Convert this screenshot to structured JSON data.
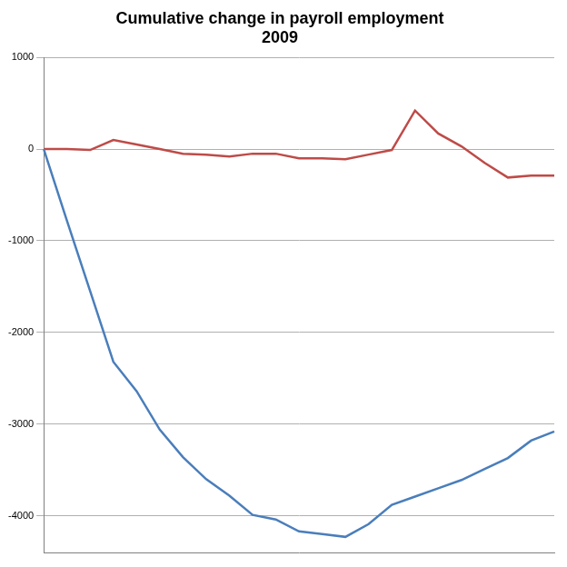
{
  "chart_data": {
    "type": "line",
    "title": [
      "Cumulative change in payroll employment",
      "2009"
    ],
    "categories": [
      null,
      null,
      null,
      null,
      null,
      null,
      null,
      null,
      null,
      null,
      null,
      null,
      null,
      null,
      null,
      null,
      null,
      null,
      null,
      null,
      null,
      null,
      null
    ],
    "series": [
      {
        "color": "#4a7ebb",
        "values": [
          0,
          -780,
          -1550,
          -2320,
          -2640,
          -3060,
          -3360,
          -3600,
          -3780,
          -3990,
          -4040,
          -4170,
          -4200,
          -4230,
          -4090,
          -3880,
          -3790,
          -3700,
          -3610,
          -3490,
          -3370,
          -3180,
          -3080
        ]
      },
      {
        "color": "#be4b48",
        "values": [
          0,
          0,
          -10,
          100,
          50,
          0,
          -50,
          -60,
          -80,
          -50,
          -50,
          -100,
          -100,
          -110,
          -60,
          -10,
          420,
          170,
          30,
          -150,
          -310,
          -290,
          -290
        ]
      }
    ],
    "ylim": [
      -4400,
      1000
    ],
    "yticks": [
      -4000,
      -3000,
      -2000,
      -1000,
      0,
      1000
    ],
    "grid": true,
    "tick_labels": "y"
  }
}
